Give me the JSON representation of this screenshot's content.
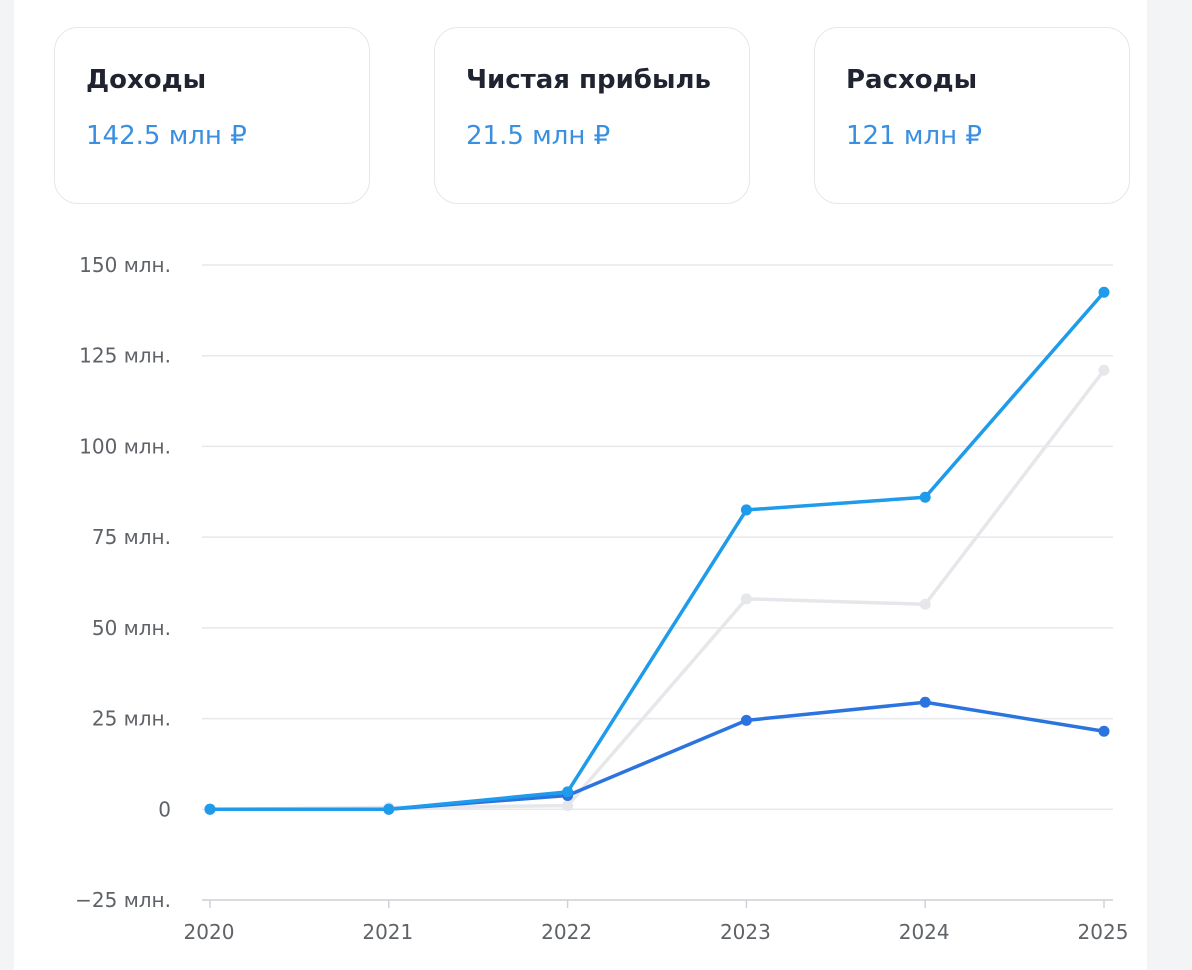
{
  "cards": [
    {
      "title": "Доходы",
      "value": "142.5 млн ₽"
    },
    {
      "title": "Чистая прибыль",
      "value": "21.5 млн ₽"
    },
    {
      "title": "Расходы",
      "value": "121 млн ₽"
    }
  ],
  "colors": {
    "income": "#1e9bea",
    "profit": "#2b74e0",
    "expenses": "#e6e7ea",
    "card_value": "#3a8fe0",
    "grid": "#e6e8ec"
  },
  "chart_data": {
    "type": "line",
    "x": [
      "2020",
      "2021",
      "2022",
      "2023",
      "2024",
      "2025"
    ],
    "yticks": [
      {
        "value": 150,
        "label": "150 млн."
      },
      {
        "value": 125,
        "label": "125 млн."
      },
      {
        "value": 100,
        "label": "100 млн."
      },
      {
        "value": 75,
        "label": "75 млн."
      },
      {
        "value": 50,
        "label": "50 млн."
      },
      {
        "value": 25,
        "label": "25 млн."
      },
      {
        "value": 0,
        "label": "0"
      },
      {
        "value": -25,
        "label": "−25 млн."
      }
    ],
    "ylim": [
      -25,
      150
    ],
    "grid": true,
    "series": [
      {
        "key": "expenses",
        "values": [
          0,
          0.5,
          1,
          58,
          56.5,
          121
        ]
      },
      {
        "key": "profit",
        "values": [
          0,
          0,
          3.8,
          24.5,
          29.5,
          21.5
        ]
      },
      {
        "key": "income",
        "values": [
          0,
          0,
          4.8,
          82.5,
          86,
          142.5
        ]
      }
    ]
  }
}
